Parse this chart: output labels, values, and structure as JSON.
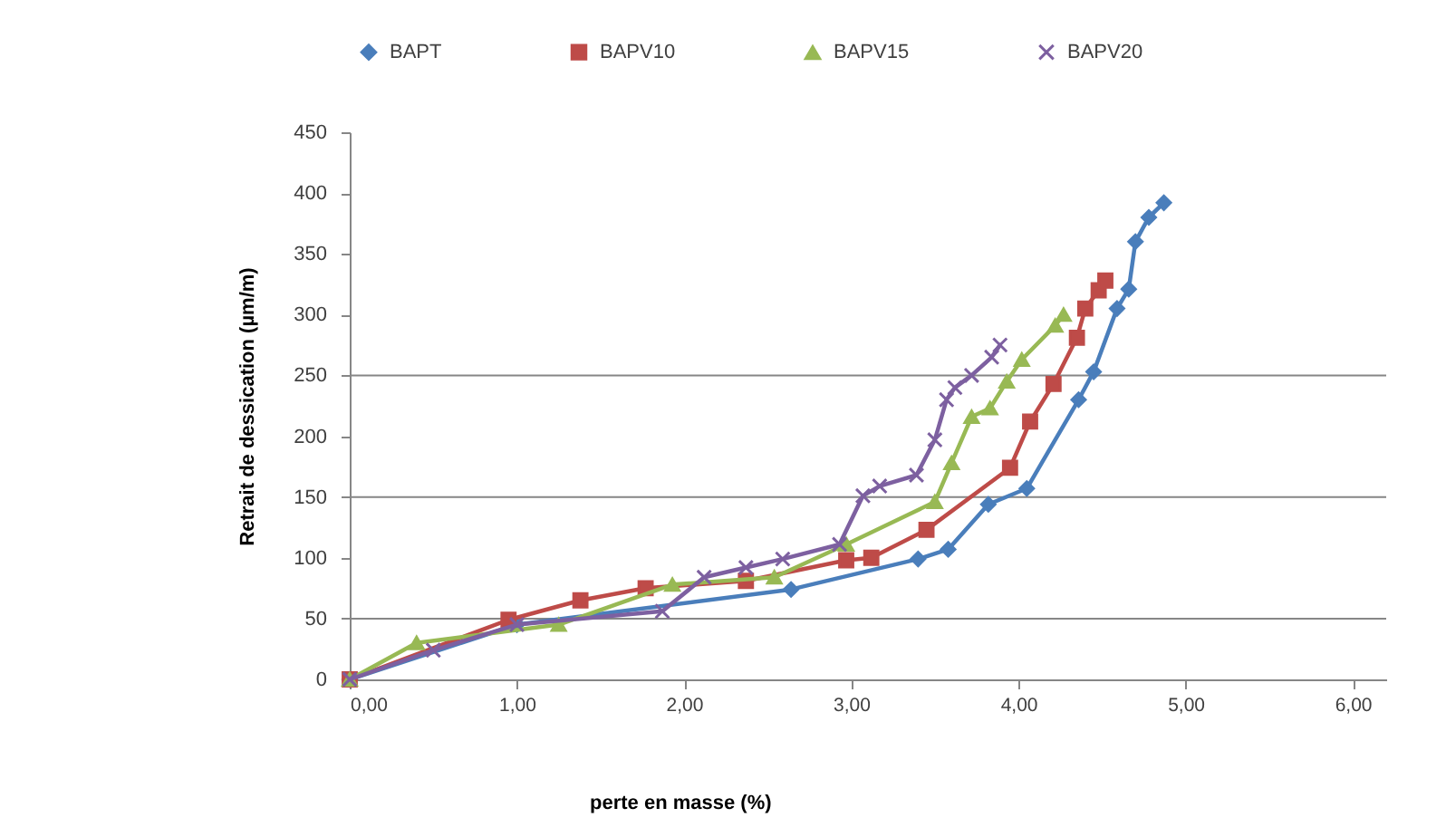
{
  "chart_data": {
    "type": "line",
    "xlabel": "perte en masse (%)",
    "ylabel": "Retrait de dessication (µm/m)",
    "xlim": [
      0,
      6.2
    ],
    "xticks": [
      {
        "value": 0,
        "label": "0,00"
      },
      {
        "value": 1,
        "label": "1,00"
      },
      {
        "value": 2,
        "label": "2,00"
      },
      {
        "value": 3,
        "label": "3,00"
      },
      {
        "value": 4,
        "label": "4,00"
      },
      {
        "value": 5,
        "label": "5,00"
      },
      {
        "value": 6,
        "label": "6,00"
      }
    ],
    "ylim": [
      0,
      450
    ],
    "yticks": [
      0,
      50,
      100,
      150,
      200,
      250,
      300,
      350,
      400,
      450
    ],
    "legend": "top",
    "ref_lines": [
      {
        "axis": "y",
        "value": 50,
        "color": "#868686"
      },
      {
        "axis": "y",
        "value": 150,
        "color": "#868686"
      },
      {
        "axis": "y",
        "value": 250,
        "color": "#868686"
      }
    ],
    "series": [
      {
        "name": "BAPT",
        "color": "#4a7ebb",
        "marker": "diamond",
        "x": [
          0,
          1.0,
          2.64,
          3.4,
          3.58,
          3.82,
          4.05,
          4.36,
          4.45,
          4.59,
          4.66,
          4.7,
          4.78,
          4.87
        ],
        "values": [
          0,
          45,
          74,
          99,
          107,
          144,
          157,
          230,
          253,
          305,
          321,
          360,
          380,
          392
        ]
      },
      {
        "name": "BAPV10",
        "color": "#be4b48",
        "marker": "square",
        "x": [
          0,
          0.95,
          1.38,
          1.77,
          2.37,
          2.97,
          3.12,
          3.45,
          3.95,
          4.07,
          4.21,
          4.35,
          4.4,
          4.48,
          4.52
        ],
        "values": [
          0,
          49,
          65,
          75,
          81,
          98,
          100,
          123,
          174,
          212,
          243,
          281,
          305,
          320,
          328
        ]
      },
      {
        "name": "BAPV15",
        "color": "#98b954",
        "marker": "triangle",
        "x": [
          0,
          0.4,
          1.25,
          1.93,
          2.54,
          2.97,
          3.5,
          3.6,
          3.72,
          3.83,
          3.93,
          4.02,
          4.22,
          4.27
        ],
        "values": [
          0,
          30,
          45,
          78,
          84,
          111,
          146,
          178,
          216,
          223,
          245,
          263,
          291,
          300
        ]
      },
      {
        "name": "BAPV20",
        "color": "#7d60a0",
        "marker": "cross",
        "x": [
          0,
          0.5,
          1.0,
          1.87,
          2.12,
          2.37,
          2.59,
          2.93,
          3.07,
          3.17,
          3.39,
          3.5,
          3.57,
          3.62,
          3.72,
          3.84,
          3.89
        ],
        "values": [
          0,
          24,
          45,
          56,
          84,
          92,
          99,
          111,
          151,
          159,
          168,
          197,
          230,
          240,
          250,
          265,
          275
        ]
      }
    ]
  }
}
